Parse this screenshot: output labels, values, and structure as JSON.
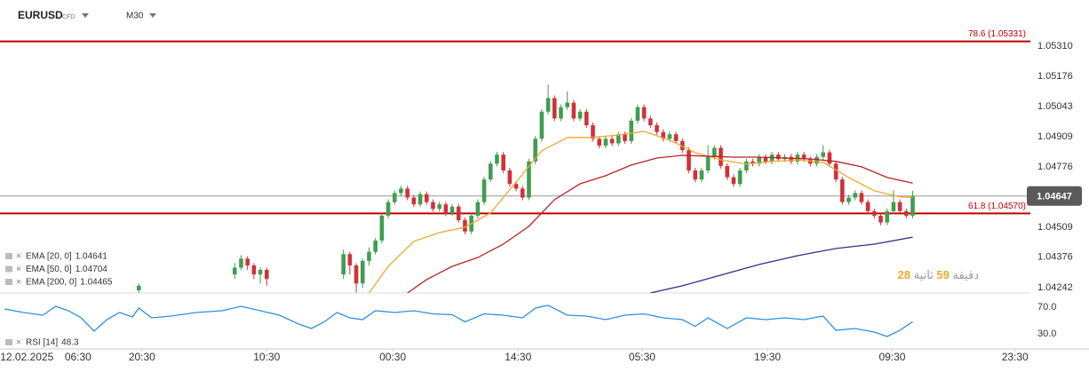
{
  "chart_data": [
    {
      "type": "candlestick",
      "symbol": "EURUSD",
      "instrument": "CFD",
      "timeframe": "M30",
      "xlim": [
        -0.7,
        160.4
      ],
      "ylim": [
        1.04218,
        1.05514
      ],
      "yticks": [
        {
          "value": 1.0531,
          "label": "1.05310"
        },
        1.05176,
        1.05043,
        1.04909,
        1.04776,
        1.04509,
        1.04376,
        1.04242
      ],
      "grid": false,
      "up_color": "#3f9e4f",
      "down_color": "#d0323a",
      "candles": {
        "x": [
          21,
          36,
          37,
          38,
          39,
          40,
          41,
          53,
          54,
          55,
          56,
          57,
          58,
          59,
          60,
          61,
          62,
          63,
          64,
          65,
          66,
          67,
          68,
          69,
          70,
          71,
          72,
          73,
          74,
          75,
          76,
          77,
          78,
          79,
          80,
          81,
          82,
          83,
          84,
          85,
          86,
          87,
          88,
          89,
          90,
          91,
          92,
          93,
          94,
          95,
          96,
          97,
          98,
          99,
          100,
          101,
          102,
          103,
          104,
          105,
          106,
          107,
          108,
          109,
          110,
          111,
          112,
          113,
          114,
          115,
          116,
          117,
          118,
          119,
          120,
          121,
          122,
          123,
          124,
          125,
          126,
          127,
          128,
          129,
          130,
          131,
          132,
          133,
          134,
          135,
          136,
          137,
          138,
          139,
          140,
          141,
          142
        ],
        "open": [
          1.0423,
          1.043,
          1.0433,
          1.0437,
          1.0434,
          1.043,
          1.0432,
          1.043,
          1.0439,
          1.0434,
          1.0426,
          1.0436,
          1.044,
          1.0445,
          1.0456,
          1.0462,
          1.0466,
          1.0468,
          1.0464,
          1.0461,
          1.04655,
          1.0462,
          1.0459,
          1.0461,
          1.0457,
          1.046,
          1.0454,
          1.0449,
          1.0456,
          1.0462,
          1.0472,
          1.0479,
          1.0483,
          1.0476,
          1.047,
          1.0468,
          1.0464,
          1.048,
          1.049,
          1.0502,
          1.0508,
          1.0499,
          1.0504,
          1.0506,
          1.0499,
          1.0502,
          1.0496,
          1.049,
          1.0487,
          1.049,
          1.0488,
          1.0492,
          1.0489,
          1.0498,
          1.0504,
          1.0499,
          1.0496,
          1.0493,
          1.049,
          1.0492,
          1.0489,
          1.0485,
          1.0476,
          1.0472,
          1.0476,
          1.0482,
          1.0486,
          1.0478,
          1.0473,
          1.047,
          1.0476,
          1.048,
          1.0479,
          1.0482,
          1.048,
          1.0483,
          1.0481,
          1.0482,
          1.048,
          1.0483,
          1.0481,
          1.0479,
          1.0482,
          1.0484,
          1.0479,
          1.0472,
          1.0462,
          1.0464,
          1.0466,
          1.0462,
          1.0458,
          1.0456,
          1.0453,
          1.0458,
          1.0462,
          1.0458,
          1.0456
        ],
        "high": [
          1.0426,
          1.0435,
          1.04385,
          1.0438,
          1.0435,
          1.0433,
          1.0433,
          1.0441,
          1.044,
          1.0435,
          1.0437,
          1.0442,
          1.04462,
          1.04572,
          1.04632,
          1.04672,
          1.04692,
          1.04692,
          1.04652,
          1.04667,
          1.04667,
          1.04632,
          1.04622,
          1.04622,
          1.04612,
          1.04612,
          1.04552,
          1.04572,
          1.04632,
          1.04732,
          1.04802,
          1.04842,
          1.04842,
          1.04772,
          1.04712,
          1.04692,
          1.04812,
          1.04912,
          1.05032,
          1.0514,
          1.05092,
          1.05052,
          1.0511,
          1.05072,
          1.05032,
          1.05032,
          1.04972,
          1.04912,
          1.04912,
          1.04912,
          1.04932,
          1.04932,
          1.04992,
          1.05052,
          1.05052,
          1.05002,
          1.04972,
          1.04942,
          1.04932,
          1.04932,
          1.04902,
          1.04862,
          1.04772,
          1.04772,
          1.04872,
          1.04872,
          1.04872,
          1.04792,
          1.04742,
          1.04772,
          1.04812,
          1.04812,
          1.04832,
          1.04832,
          1.04842,
          1.04842,
          1.04832,
          1.04832,
          1.04842,
          1.04842,
          1.04822,
          1.04832,
          1.04872,
          1.04852,
          1.04802,
          1.04732,
          1.04652,
          1.04672,
          1.04672,
          1.04632,
          1.04592,
          1.04572,
          1.04592,
          1.04672,
          1.04632,
          1.04592,
          1.0467
        ],
        "low": [
          1.0421,
          1.0428,
          1.0432,
          1.0432,
          1.0428,
          1.0426,
          1.0425,
          1.0428,
          1.043,
          1.0422,
          1.0424,
          1.0434,
          1.04388,
          1.04438,
          1.04548,
          1.04608,
          1.04648,
          1.04628,
          1.04598,
          1.04598,
          1.04608,
          1.04578,
          1.04578,
          1.04558,
          1.04558,
          1.04528,
          1.04478,
          1.04478,
          1.04548,
          1.04608,
          1.04708,
          1.04778,
          1.04748,
          1.04688,
          1.04668,
          1.04628,
          1.04628,
          1.04788,
          1.04888,
          1.05008,
          1.04978,
          1.04978,
          1.05028,
          1.04978,
          1.04978,
          1.04948,
          1.04888,
          1.04858,
          1.04858,
          1.04868,
          1.04868,
          1.04878,
          1.04878,
          1.04968,
          1.04978,
          1.04948,
          1.04918,
          1.04888,
          1.04888,
          1.04878,
          1.04838,
          1.04748,
          1.04708,
          1.04708,
          1.04748,
          1.04808,
          1.04768,
          1.04718,
          1.04688,
          1.04688,
          1.04748,
          1.04778,
          1.04778,
          1.04788,
          1.04788,
          1.04798,
          1.04798,
          1.04788,
          1.04788,
          1.04798,
          1.04778,
          1.04778,
          1.04808,
          1.04778,
          1.04708,
          1.04608,
          1.04608,
          1.04628,
          1.04608,
          1.04568,
          1.04548,
          1.04518,
          1.04518,
          1.04568,
          1.04568,
          1.04548,
          1.04548
        ],
        "close": [
          1.0425,
          1.0433,
          1.0437,
          1.0434,
          1.043,
          1.0432,
          1.0428,
          1.0439,
          1.0434,
          1.0426,
          1.0436,
          1.044,
          1.0445,
          1.0456,
          1.0462,
          1.0466,
          1.0468,
          1.0464,
          1.0461,
          1.04655,
          1.0462,
          1.0459,
          1.0461,
          1.0457,
          1.046,
          1.0454,
          1.0449,
          1.0456,
          1.0462,
          1.0472,
          1.0479,
          1.0483,
          1.0476,
          1.047,
          1.0468,
          1.0464,
          1.048,
          1.049,
          1.0502,
          1.0508,
          1.0499,
          1.0504,
          1.0506,
          1.0499,
          1.0502,
          1.0496,
          1.049,
          1.0487,
          1.049,
          1.0488,
          1.0492,
          1.0489,
          1.0498,
          1.0504,
          1.0499,
          1.0496,
          1.0493,
          1.049,
          1.0492,
          1.0489,
          1.0485,
          1.0476,
          1.0472,
          1.0476,
          1.0482,
          1.0486,
          1.0478,
          1.0473,
          1.047,
          1.0476,
          1.048,
          1.0479,
          1.0482,
          1.048,
          1.0483,
          1.0481,
          1.0482,
          1.048,
          1.0483,
          1.0481,
          1.0479,
          1.0482,
          1.0484,
          1.0479,
          1.0472,
          1.0462,
          1.0464,
          1.0466,
          1.0462,
          1.0458,
          1.0456,
          1.0453,
          1.0458,
          1.0462,
          1.0458,
          1.0456,
          1.04647
        ]
      },
      "series": [
        {
          "name": "EMA [20, 0]",
          "color": "#f0a830",
          "x": [
            57,
            60,
            64,
            68,
            72,
            76,
            80,
            84,
            88,
            92,
            96,
            100,
            104,
            108,
            112,
            116,
            120,
            124,
            128,
            132,
            136,
            140,
            142
          ],
          "values": [
            1.04218,
            1.04336,
            1.04446,
            1.04485,
            1.04509,
            1.04572,
            1.04709,
            1.04847,
            1.04906,
            1.04906,
            1.04917,
            1.04933,
            1.04894,
            1.04839,
            1.04807,
            1.04788,
            1.048,
            1.04807,
            1.04796,
            1.04729,
            1.0467,
            1.04643,
            1.04641
          ]
        },
        {
          "name": "EMA [50, 0]",
          "color": "#b82424",
          "x": [
            63,
            66,
            70,
            74,
            78,
            82,
            86,
            90,
            94,
            98,
            102,
            106,
            110,
            114,
            118,
            122,
            126,
            130,
            134,
            138,
            142
          ],
          "values": [
            1.04218,
            1.04277,
            1.04336,
            1.04375,
            1.04434,
            1.04513,
            1.04631,
            1.04701,
            1.04737,
            1.04784,
            1.04815,
            1.04827,
            1.04823,
            1.04819,
            1.04819,
            1.04815,
            1.04811,
            1.048,
            1.04776,
            1.04729,
            1.04704
          ]
        },
        {
          "name": "EMA [200, 0]",
          "color": "#3b2c8f",
          "x": [
            101,
            106,
            112,
            118,
            124,
            130,
            136,
            142
          ],
          "values": [
            1.04218,
            1.0425,
            1.04297,
            1.04344,
            1.04383,
            1.04415,
            1.04434,
            1.04465
          ]
        }
      ],
      "levels": [
        {
          "label": "78.6 (1.05331)",
          "value": 1.05331,
          "color": "#c00000"
        },
        {
          "label": "61.8 (1.04570)",
          "value": 1.0457,
          "color": "#c00000"
        }
      ],
      "countdown": [
        "دقيقة",
        59,
        "ثانية",
        28
      ]
    },
    {
      "type": "line",
      "name": "RSI [14]",
      "color": "#2f8fe0",
      "xlim": [
        -0.7,
        160.4
      ],
      "ylim": [
        8.7,
        91.3
      ],
      "yticks": [
        {
          "value": 70,
          "label": "70.0"
        },
        {
          "value": 30,
          "label": "30.0"
        }
      ],
      "x": [
        0,
        3,
        6,
        8,
        10,
        12,
        14,
        16,
        18,
        20,
        21,
        23,
        26,
        30,
        34,
        37,
        40,
        43,
        46,
        48,
        50,
        52,
        54,
        56,
        58,
        61,
        64,
        67,
        70,
        72,
        75,
        78,
        81,
        83,
        85,
        88,
        91,
        94,
        97,
        100,
        103,
        106,
        108,
        110,
        113,
        116,
        119,
        122,
        125,
        128,
        130,
        133,
        136,
        138,
        140,
        142
      ],
      "values": [
        67.3,
        62,
        58,
        71.3,
        64.7,
        54,
        34,
        51.3,
        62,
        55.3,
        68.7,
        54,
        56.7,
        62,
        64.7,
        71.3,
        64.7,
        58,
        44.7,
        38,
        48,
        62,
        54,
        51.3,
        64.7,
        62,
        64.7,
        60,
        58.7,
        48,
        60,
        58,
        54,
        68.7,
        72.7,
        58,
        56.7,
        51.3,
        58,
        60,
        54,
        51.3,
        41.3,
        54,
        38,
        54,
        51.3,
        54,
        51.3,
        56.7,
        35.3,
        38,
        32.7,
        26,
        35.3,
        48.3
      ],
      "xticks": [
        {
          "value": 3.5,
          "label": "12.02.2025"
        },
        {
          "value": 11.5,
          "label": "06:30"
        },
        {
          "value": 21.5,
          "label": "20:30"
        },
        {
          "value": 41,
          "label": "10:30"
        },
        {
          "value": 60.7,
          "label": "00:30"
        },
        {
          "value": 80.3,
          "label": "14:30"
        },
        {
          "value": 99.7,
          "label": "05:30"
        },
        {
          "value": 119.3,
          "label": "19:30"
        },
        {
          "value": 138.8,
          "label": "09:30"
        },
        {
          "value": 158,
          "label": "23:30"
        }
      ]
    }
  ]
}
